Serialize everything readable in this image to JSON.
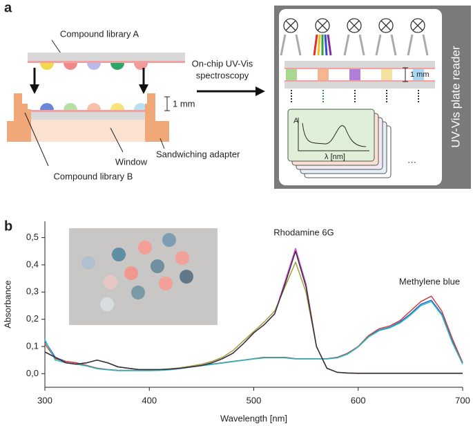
{
  "panel_a": {
    "label": "a",
    "library_a": "Compound library A",
    "library_b": "Compound library B",
    "method": [
      "On-chip UV-Vis",
      "spectroscopy"
    ],
    "gap_left": "1 mm",
    "gap_right": "1 mm",
    "window": "Window",
    "adapter": "Sandwiching adapter",
    "reader": "UV-Vis plate reader",
    "inset_y": "A",
    "inset_x": "λ [nm]",
    "more": "···"
  },
  "chart_data": {
    "type": "line",
    "panel_label": "b",
    "xlabel": "Wavelength [nm]",
    "ylabel": "Absorbance",
    "annotations": [
      "Rhodamine 6G",
      "Methylene blue"
    ],
    "x": [
      300,
      310,
      320,
      330,
      340,
      350,
      360,
      370,
      380,
      390,
      400,
      410,
      420,
      430,
      440,
      450,
      460,
      470,
      480,
      490,
      500,
      510,
      520,
      530,
      540,
      550,
      560,
      570,
      580,
      590,
      600,
      610,
      620,
      630,
      640,
      650,
      660,
      670,
      680,
      690,
      700
    ],
    "xlim": [
      300,
      700
    ],
    "xticks": [
      300,
      400,
      500,
      600,
      700
    ],
    "ylim": [
      -0.05,
      0.56
    ],
    "yticks": [
      {
        "value": 0,
        "label": "0,0"
      },
      {
        "value": 0.1,
        "label": "0,1"
      },
      {
        "value": 0.2,
        "label": "0,2"
      },
      {
        "value": 0.3,
        "label": "0,3"
      },
      {
        "value": 0.4,
        "label": "0,4"
      },
      {
        "value": 0.5,
        "label": "0,5"
      }
    ],
    "series": [
      {
        "color": "#3060d0",
        "values": [
          0.12,
          0.06,
          0.045,
          0.04,
          0.03,
          0.02,
          0.015,
          0.012,
          0.012,
          0.012,
          0.012,
          0.013,
          0.015,
          0.02,
          0.025,
          0.03,
          0.035,
          0.04,
          0.045,
          0.05,
          0.055,
          0.06,
          0.06,
          0.06,
          0.055,
          0.055,
          0.055,
          0.055,
          0.06,
          0.075,
          0.1,
          0.14,
          0.16,
          0.17,
          0.19,
          0.22,
          0.255,
          0.27,
          0.22,
          0.12,
          0.04
        ]
      },
      {
        "color": "#d04040",
        "values": [
          0.11,
          0.055,
          0.045,
          0.04,
          0.03,
          0.02,
          0.015,
          0.012,
          0.012,
          0.012,
          0.012,
          0.013,
          0.015,
          0.02,
          0.025,
          0.03,
          0.035,
          0.04,
          0.045,
          0.05,
          0.055,
          0.06,
          0.06,
          0.06,
          0.055,
          0.055,
          0.055,
          0.055,
          0.06,
          0.075,
          0.1,
          0.14,
          0.165,
          0.175,
          0.195,
          0.23,
          0.265,
          0.285,
          0.23,
          0.13,
          0.04
        ]
      },
      {
        "color": "#20c0c0",
        "values": [
          0.125,
          0.05,
          0.04,
          0.035,
          0.028,
          0.018,
          0.014,
          0.011,
          0.011,
          0.011,
          0.011,
          0.012,
          0.014,
          0.019,
          0.024,
          0.029,
          0.034,
          0.039,
          0.044,
          0.049,
          0.054,
          0.058,
          0.058,
          0.058,
          0.054,
          0.054,
          0.054,
          0.054,
          0.058,
          0.072,
          0.098,
          0.135,
          0.158,
          0.168,
          0.186,
          0.215,
          0.25,
          0.265,
          0.215,
          0.115,
          0.035
        ]
      },
      {
        "color": "#a0a040",
        "values": [
          0.08,
          0.06,
          0.04,
          0.035,
          0.04,
          0.05,
          0.04,
          0.025,
          0.02,
          0.015,
          0.015,
          0.015,
          0.018,
          0.022,
          0.028,
          0.035,
          0.045,
          0.06,
          0.085,
          0.12,
          0.155,
          0.19,
          0.23,
          0.32,
          0.41,
          0.3,
          0.1,
          0.02,
          0.005,
          0.003,
          0.002,
          0.002,
          0.002,
          0.002,
          0.002,
          0.002,
          0.002,
          0.002,
          0.002,
          0.002,
          0.002
        ]
      },
      {
        "color": "#e040e0",
        "values": [
          0.08,
          0.06,
          0.04,
          0.035,
          0.04,
          0.05,
          0.04,
          0.025,
          0.02,
          0.015,
          0.015,
          0.015,
          0.017,
          0.02,
          0.025,
          0.03,
          0.04,
          0.055,
          0.075,
          0.11,
          0.15,
          0.18,
          0.22,
          0.34,
          0.46,
          0.33,
          0.1,
          0.02,
          0.005,
          0.002,
          0.001,
          0.001,
          0.001,
          0.001,
          0.001,
          0.001,
          0.001,
          0.001,
          0.001,
          0.001,
          0.001
        ]
      },
      {
        "color": "#333333",
        "values": [
          0.08,
          0.06,
          0.04,
          0.035,
          0.04,
          0.05,
          0.04,
          0.025,
          0.02,
          0.015,
          0.015,
          0.015,
          0.017,
          0.02,
          0.025,
          0.03,
          0.04,
          0.055,
          0.075,
          0.11,
          0.15,
          0.18,
          0.22,
          0.33,
          0.45,
          0.32,
          0.1,
          0.02,
          0.005,
          0.002,
          0.001,
          0.001,
          0.001,
          0.001,
          0.001,
          0.001,
          0.001,
          0.001,
          0.001,
          0.001,
          0.001
        ]
      }
    ]
  }
}
